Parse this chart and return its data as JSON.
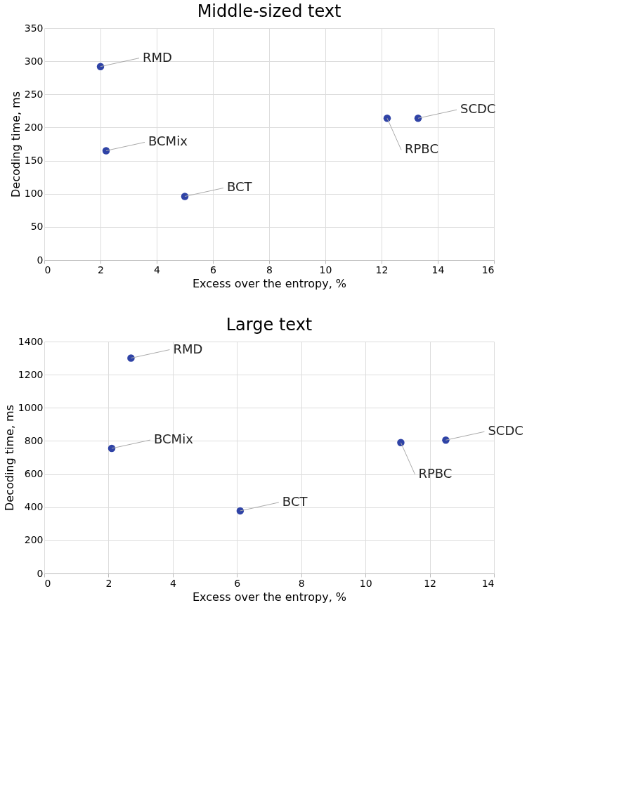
{
  "chart_data": [
    {
      "type": "scatter",
      "title": "Middle-sized text",
      "xlabel": "Excess over the entropy, %",
      "ylabel": "Decoding time, ms",
      "x": [
        2,
        2.2,
        5,
        12.2,
        13.3
      ],
      "series": [
        {
          "color": "#2f43a6",
          "values": [
            292,
            165,
            96,
            214,
            214
          ]
        }
      ],
      "xlim": [
        0,
        16
      ],
      "xticks": [
        0,
        2,
        4,
        6,
        8,
        10,
        12,
        14,
        16
      ],
      "ylim": [
        0,
        350
      ],
      "yticks": [
        0,
        50,
        100,
        150,
        200,
        250,
        300,
        350
      ],
      "grid": true,
      "marker": "circle",
      "annotations": [
        {
          "text": "RMD",
          "x": 2,
          "y": 292
        },
        {
          "text": "BCMix",
          "x": 2.2,
          "y": 165
        },
        {
          "text": "BCT",
          "x": 5,
          "y": 96
        },
        {
          "text": "RPBC",
          "x": 12.2,
          "y": 214
        },
        {
          "text": "SCDC",
          "x": 13.3,
          "y": 214
        }
      ]
    },
    {
      "type": "scatter",
      "title": "Large text",
      "xlabel": "Excess over the entropy, %",
      "ylabel": "Decoding time, ms",
      "x": [
        2.7,
        2.1,
        6.1,
        11.1,
        12.5
      ],
      "series": [
        {
          "color": "#2f43a6",
          "values": [
            1300,
            755,
            378,
            790,
            805
          ]
        }
      ],
      "xlim": [
        0,
        14
      ],
      "xticks": [
        0,
        2,
        4,
        6,
        8,
        10,
        12,
        14
      ],
      "ylim": [
        0,
        1400
      ],
      "yticks": [
        0,
        200,
        400,
        600,
        800,
        1000,
        1200,
        1400
      ],
      "grid": true,
      "marker": "circle",
      "annotations": [
        {
          "text": "RMD",
          "x": 2.7,
          "y": 1300
        },
        {
          "text": "BCMix",
          "x": 2.1,
          "y": 755
        },
        {
          "text": "BCT",
          "x": 6.1,
          "y": 378
        },
        {
          "text": "RPBC",
          "x": 11.1,
          "y": 790
        },
        {
          "text": "SCDC",
          "x": 12.5,
          "y": 805
        }
      ]
    }
  ]
}
